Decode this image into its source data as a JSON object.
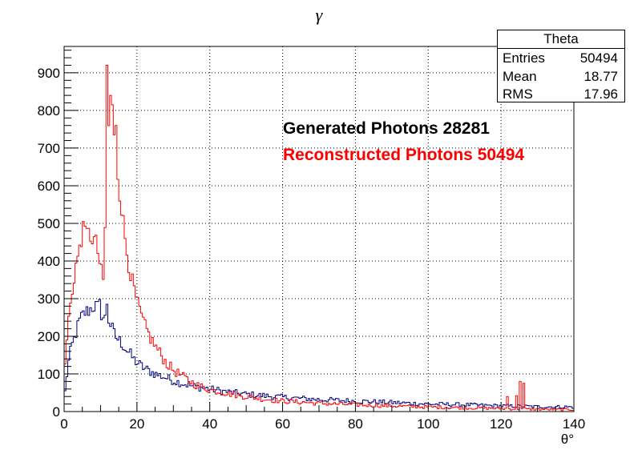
{
  "title": "γ",
  "stats": {
    "name": "Theta",
    "rows": [
      {
        "label": "Entries",
        "value": "50494"
      },
      {
        "label": "Mean",
        "value": "18.77"
      },
      {
        "label": "RMS",
        "value": "17.96"
      }
    ]
  },
  "legend": {
    "generated": "Generated Photons 28281",
    "reconstructed": "Reconstructed Photons 50494"
  },
  "colors": {
    "generated": "#000080",
    "reconstructed": "#ff0000",
    "grid": "#000000"
  },
  "chart_data": {
    "type": "histogram",
    "xlabel": "θ°",
    "ylabel": "",
    "xlim": [
      0,
      140
    ],
    "ylim": [
      0,
      970
    ],
    "xticks": [
      0,
      20,
      40,
      60,
      80,
      100,
      120,
      140
    ],
    "yticks": [
      0,
      100,
      200,
      300,
      400,
      500,
      600,
      700,
      800,
      900
    ],
    "grid": true,
    "bin_width": 0.5,
    "series": [
      {
        "name": "Generated Photons 28281",
        "color": "#000080",
        "profile": [
          [
            0,
            30
          ],
          [
            1,
            120
          ],
          [
            2,
            170
          ],
          [
            3,
            200
          ],
          [
            4,
            235
          ],
          [
            5,
            255
          ],
          [
            6,
            265
          ],
          [
            7,
            270
          ],
          [
            8,
            280
          ],
          [
            9,
            280
          ],
          [
            10,
            265
          ],
          [
            11,
            245
          ],
          [
            12,
            250
          ],
          [
            13,
            225
          ],
          [
            14,
            200
          ],
          [
            15,
            190
          ],
          [
            16,
            180
          ],
          [
            17,
            165
          ],
          [
            18,
            155
          ],
          [
            19,
            140
          ],
          [
            20,
            130
          ],
          [
            22,
            115
          ],
          [
            25,
            100
          ],
          [
            28,
            90
          ],
          [
            30,
            82
          ],
          [
            35,
            68
          ],
          [
            40,
            60
          ],
          [
            45,
            52
          ],
          [
            50,
            46
          ],
          [
            55,
            42
          ],
          [
            60,
            38
          ],
          [
            70,
            32
          ],
          [
            80,
            28
          ],
          [
            90,
            24
          ],
          [
            100,
            20
          ],
          [
            110,
            18
          ],
          [
            120,
            15
          ],
          [
            130,
            13
          ],
          [
            140,
            12
          ]
        ],
        "peaks": [
          [
            9.5,
            298
          ],
          [
            11.5,
            285
          ]
        ]
      },
      {
        "name": "Reconstructed Photons 50494",
        "color": "#ff0000",
        "profile": [
          [
            0,
            80
          ],
          [
            1,
            230
          ],
          [
            2,
            300
          ],
          [
            3,
            380
          ],
          [
            4,
            420
          ],
          [
            5,
            450
          ],
          [
            6,
            470
          ],
          [
            7,
            470
          ],
          [
            8,
            460
          ],
          [
            9,
            440
          ],
          [
            10,
            380
          ],
          [
            11,
            330
          ],
          [
            11.5,
            650
          ],
          [
            12,
            750
          ],
          [
            13,
            780
          ],
          [
            14,
            700
          ],
          [
            15,
            610
          ],
          [
            16,
            520
          ],
          [
            17,
            440
          ],
          [
            18,
            380
          ],
          [
            19,
            330
          ],
          [
            20,
            290
          ],
          [
            22,
            230
          ],
          [
            24,
            190
          ],
          [
            26,
            160
          ],
          [
            28,
            130
          ],
          [
            30,
            110
          ],
          [
            33,
            90
          ],
          [
            36,
            72
          ],
          [
            40,
            58
          ],
          [
            45,
            48
          ],
          [
            50,
            40
          ],
          [
            55,
            33
          ],
          [
            60,
            28
          ],
          [
            70,
            22
          ],
          [
            80,
            18
          ],
          [
            90,
            15
          ],
          [
            100,
            12
          ],
          [
            110,
            10
          ],
          [
            120,
            8
          ],
          [
            130,
            6
          ],
          [
            140,
            5
          ]
        ],
        "peaks": [
          [
            11.5,
            920
          ],
          [
            12.5,
            840
          ],
          [
            13,
            815
          ],
          [
            14,
            760
          ],
          [
            5,
            505
          ],
          [
            121.5,
            40
          ],
          [
            124,
            42
          ],
          [
            125,
            80
          ],
          [
            126,
            75
          ]
        ]
      }
    ]
  }
}
